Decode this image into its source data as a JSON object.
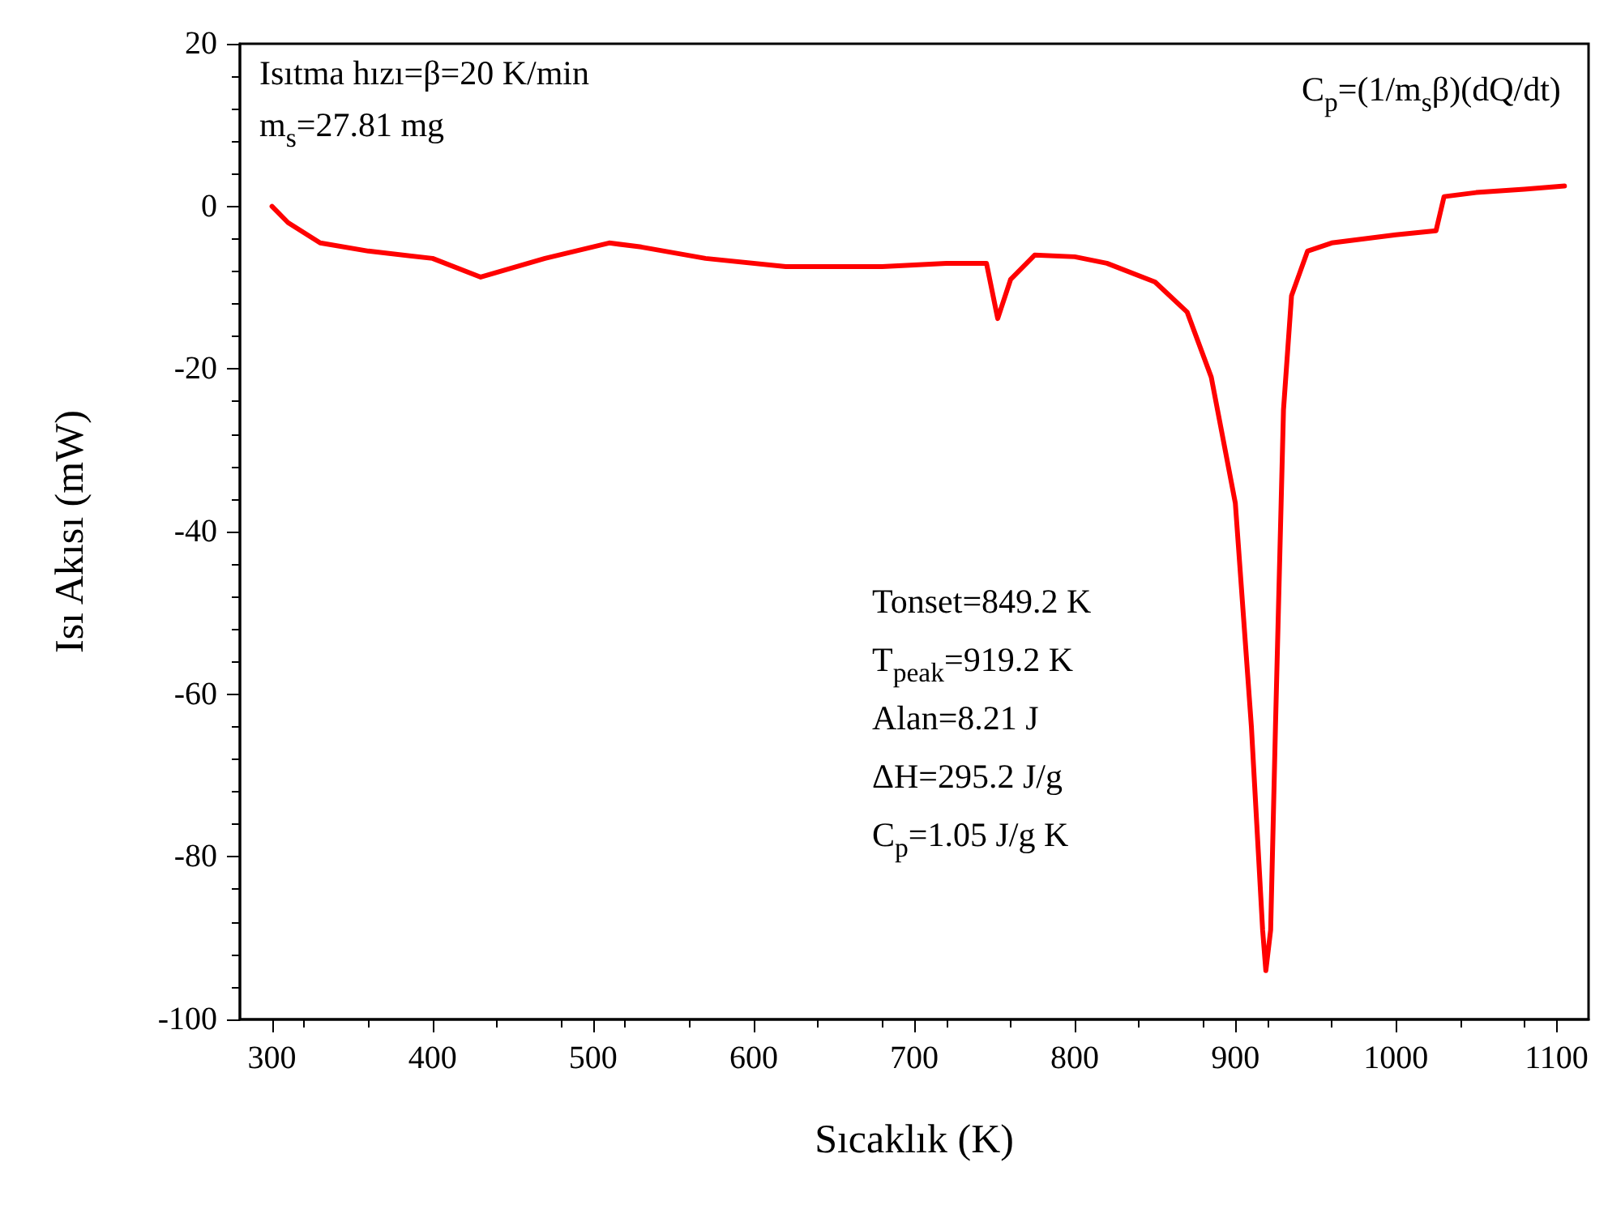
{
  "chart_data": {
    "type": "line",
    "xlabel": "Sıcaklık (K)",
    "ylabel": "Isı Akısı (mW)",
    "annotations": [
      "Isıtma hızı=β=20 K/min",
      "m$_{s}$=27.81 mg",
      "C$_{p}$=(1/m$_{s}$β)(dQ/dt)",
      "Tonset=849.2 K",
      "T$_{peak}$=919.2 K",
      "Alan=8.21 J",
      "ΔH=295.2 J/g",
      "C$_{p}$=1.05 J/g K"
    ],
    "x": [
      300,
      310,
      330,
      360,
      400,
      430,
      470,
      510,
      530,
      570,
      620,
      680,
      720,
      745,
      752,
      760,
      775,
      800,
      820,
      850,
      870,
      885,
      900,
      910,
      917,
      919,
      922,
      925,
      930,
      935,
      945,
      960,
      1000,
      1025,
      1030,
      1050,
      1080,
      1105
    ],
    "series": [
      {
        "color": "#ff0000",
        "values": [
          0,
          -2,
          -4.5,
          -5.5,
          -6.4,
          -8.7,
          -6.4,
          -4.5,
          -5,
          -6.4,
          -7.4,
          -7.4,
          -7,
          -7,
          -13.8,
          -9,
          -6,
          -6.2,
          -7,
          -9.3,
          -13,
          -21,
          -36.5,
          -64,
          -89,
          -94,
          -89,
          -64,
          -25,
          -11,
          -5.5,
          -4.5,
          -3.5,
          -3,
          1.2,
          1.7,
          2.1,
          2.5
        ]
      }
    ],
    "xlim": [
      280,
      1120
    ],
    "xticks": [
      300,
      400,
      500,
      600,
      700,
      800,
      900,
      1000,
      1100
    ],
    "ylim": [
      -100,
      20
    ],
    "yticks": [
      -100,
      -80,
      -60,
      -40,
      -20,
      0,
      20
    ],
    "grid": false,
    "marker": "none",
    "line_style": "solid"
  }
}
